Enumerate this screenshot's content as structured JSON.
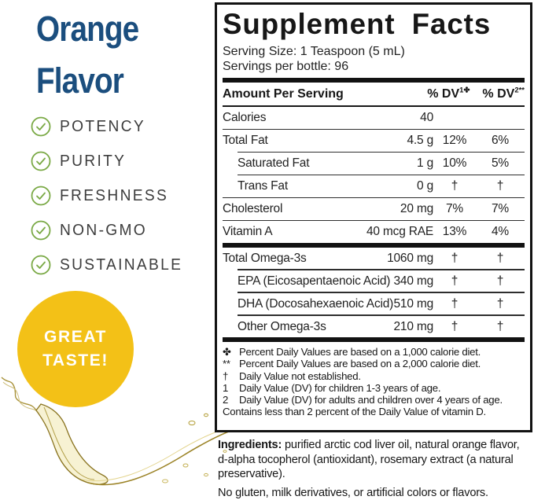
{
  "left": {
    "flavor_title_line1": "Orange",
    "flavor_title_line2": "Flavor",
    "checklist": [
      "POTENCY",
      "PURITY",
      "FRESHNESS",
      "NON-GMO",
      "SUSTAINABLE"
    ],
    "badge": {
      "line1": "GREAT",
      "line2": "TASTE!"
    },
    "colors": {
      "title_blue": "#1b4e7e",
      "check_green": "#7aa945",
      "badge_yellow": "#f3c117",
      "oil_gold": "#b89b2a"
    }
  },
  "panel": {
    "title": "Supplement Facts",
    "serving_size": "Serving Size: 1 Teaspoon (5 mL)",
    "servings_per_bottle": "Servings per bottle: 96",
    "columns": {
      "amount_header": "Amount Per Serving",
      "dv1_base": "% DV",
      "dv1_sup": "1✤",
      "dv2_base": "% DV",
      "dv2_sup": "2**"
    },
    "rows": [
      {
        "label": "Calories",
        "amount": "40",
        "dv1": "",
        "dv2": "",
        "indent": false,
        "thick_top": false
      },
      {
        "label": "Total Fat",
        "amount": "4.5 g",
        "dv1": "12%",
        "dv2": "6%",
        "indent": false,
        "thick_top": false
      },
      {
        "label": "Saturated Fat",
        "amount": "1 g",
        "dv1": "10%",
        "dv2": "5%",
        "indent": true,
        "thick_top": false
      },
      {
        "label": "Trans Fat",
        "amount": "0 g",
        "dv1": "†",
        "dv2": "†",
        "indent": true,
        "thick_top": false
      },
      {
        "label": "Cholesterol",
        "amount": "20 mg",
        "dv1": "7%",
        "dv2": "7%",
        "indent": false,
        "thick_top": false
      },
      {
        "label": "Vitamin A",
        "amount": "40 mcg RAE",
        "dv1": "13%",
        "dv2": "4%",
        "indent": false,
        "thick_top": false
      },
      {
        "label": "Total Omega-3s",
        "amount": "1060 mg",
        "dv1": "†",
        "dv2": "†",
        "indent": false,
        "thick_top": true
      },
      {
        "label": "EPA (Eicosapentaenoic Acid)",
        "amount": "340 mg",
        "dv1": "†",
        "dv2": "†",
        "indent": true,
        "thick_top": false
      },
      {
        "label": "DHA (Docosahexaenoic Acid)",
        "amount": "510 mg",
        "dv1": "†",
        "dv2": "†",
        "indent": true,
        "thick_top": false
      },
      {
        "label": "Other Omega-3s",
        "amount": "210 mg",
        "dv1": "†",
        "dv2": "†",
        "indent": true,
        "thick_top": false
      }
    ],
    "footnotes": [
      {
        "symbol": "✤",
        "text": "Percent Daily Values are based on a 1,000 calorie diet."
      },
      {
        "symbol": "**",
        "text": "Percent Daily Values are based on a 2,000 calorie diet."
      },
      {
        "symbol": "†",
        "text": "Daily Value not established."
      },
      {
        "symbol": "1",
        "text": "Daily Value (DV) for children 1-3 years of age."
      },
      {
        "symbol": "2",
        "text": "Daily Value (DV) for adults and children over 4 years of age."
      },
      {
        "symbol": "",
        "text": "Contains less than 2 percent of the Daily Value of vitamin D."
      }
    ]
  },
  "ingredients": {
    "label": "Ingredients:",
    "text": "purified arctic cod liver oil, natural orange flavor, d-alpha tocopherol (antioxidant), rosemary extract (a natural preservative).",
    "allergens": "No gluten, milk derivatives, or artificial colors or flavors."
  }
}
